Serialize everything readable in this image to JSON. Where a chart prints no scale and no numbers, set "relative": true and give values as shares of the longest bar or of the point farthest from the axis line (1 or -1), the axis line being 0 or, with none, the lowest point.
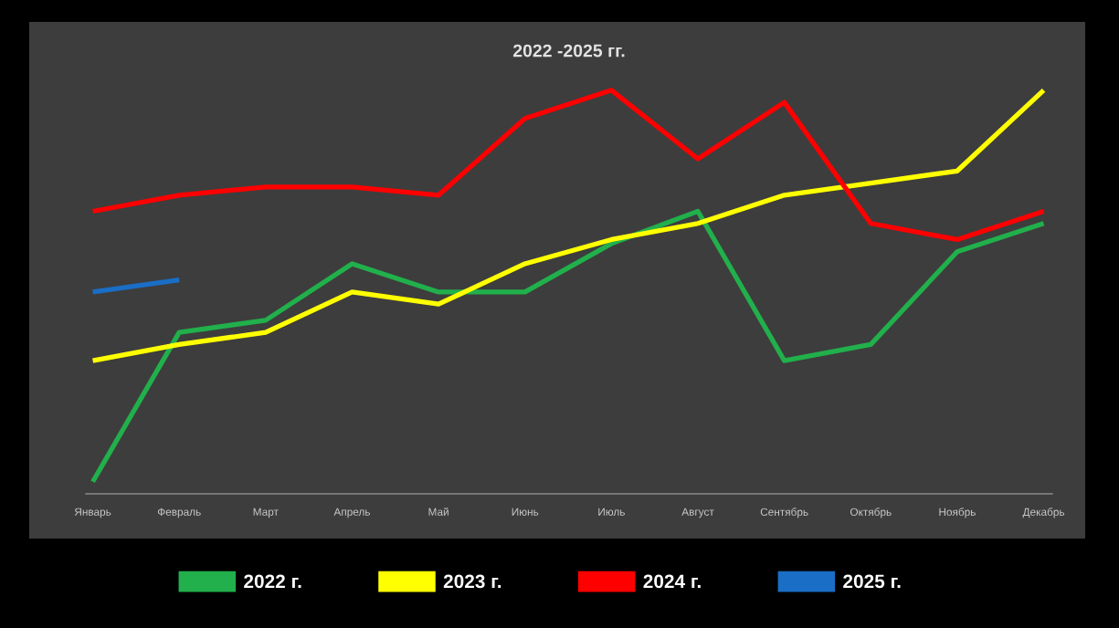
{
  "chart_data": {
    "type": "line",
    "title": "2022 -2025 гг.",
    "relative": true,
    "legend": "bottom",
    "categories": [
      "Январь",
      "Февраль",
      "Март",
      "Апрель",
      "Май",
      "Июнь",
      "Июль",
      "Август",
      "Сентябрь",
      "Октябрь",
      "Ноябрь",
      "Декабрь"
    ],
    "series": [
      {
        "name": "2022 г.",
        "color": "#21b04b",
        "values": [
          0.03,
          0.4,
          0.43,
          0.57,
          0.5,
          0.5,
          0.62,
          0.7,
          0.33,
          0.37,
          0.6,
          0.67
        ]
      },
      {
        "name": "2023 г.",
        "color": "#ffff00",
        "values": [
          0.33,
          0.37,
          0.4,
          0.5,
          0.47,
          0.57,
          0.63,
          0.67,
          0.74,
          0.77,
          0.8,
          1.0
        ]
      },
      {
        "name": "2024 г.",
        "color": "#ff0000",
        "values": [
          0.7,
          0.74,
          0.76,
          0.76,
          0.74,
          0.93,
          1.0,
          0.83,
          0.97,
          0.67,
          0.63,
          0.7
        ]
      },
      {
        "name": "2025 г.",
        "color": "#1a6ec5",
        "values": [
          0.5,
          0.53,
          null,
          null,
          null,
          null,
          null,
          null,
          null,
          null,
          null,
          null
        ]
      }
    ]
  }
}
